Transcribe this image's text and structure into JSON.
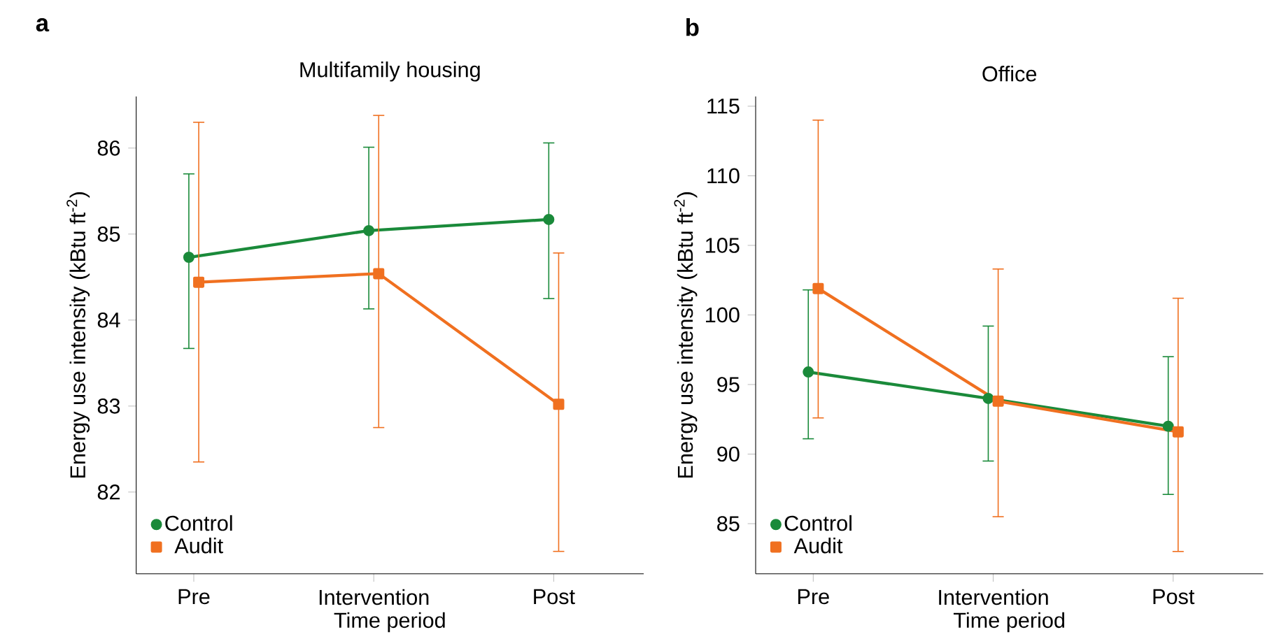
{
  "chart_data": [
    {
      "type": "line",
      "title": "Multifamily housing",
      "xlabel": "Time period",
      "ylabel": "Energy use intensity (kBtu ft$^{-2}$)",
      "categories": [
        "Pre",
        "Intervention",
        "Post"
      ],
      "ylim": [
        81.05,
        86.6
      ],
      "yticks": [
        82,
        83,
        84,
        85,
        86
      ],
      "legend": "bottom left",
      "grid": false,
      "annotations": [
        "a"
      ],
      "series": [
        {
          "name": "Control",
          "color": "#1a8a3a",
          "marker": "circle",
          "values": [
            84.73,
            85.04,
            85.17
          ],
          "errors": [
            [
              83.67,
              85.7
            ],
            [
              84.13,
              86.01
            ],
            [
              84.25,
              86.06
            ]
          ]
        },
        {
          "name": "Audit",
          "color": "#f07020",
          "marker": "square",
          "values": [
            84.44,
            84.54,
            83.02
          ],
          "errors": [
            [
              82.35,
              86.3
            ],
            [
              82.75,
              86.38
            ],
            [
              81.31,
              84.78
            ]
          ]
        }
      ]
    },
    {
      "type": "line",
      "title": "Office",
      "xlabel": "Time period",
      "ylabel": "Energy use intensity (kBtu ft$^{-2}$)",
      "categories": [
        "Pre",
        "Intervention",
        "Post"
      ],
      "ylim": [
        81.4,
        115.7
      ],
      "yticks": [
        85,
        90,
        95,
        100,
        105,
        110,
        115
      ],
      "legend": "bottom left",
      "grid": false,
      "annotations": [
        "b"
      ],
      "series": [
        {
          "name": "Control",
          "color": "#1a8a3a",
          "marker": "circle",
          "values": [
            95.9,
            94.0,
            92.0
          ],
          "errors": [
            [
              91.1,
              101.8
            ],
            [
              89.5,
              99.2
            ],
            [
              87.1,
              97.0
            ]
          ]
        },
        {
          "name": "Audit",
          "color": "#f07020",
          "marker": "square",
          "values": [
            101.9,
            93.8,
            91.6
          ],
          "errors": [
            [
              92.6,
              114.0
            ],
            [
              85.5,
              103.3
            ],
            [
              83.0,
              101.2
            ]
          ]
        }
      ]
    }
  ]
}
